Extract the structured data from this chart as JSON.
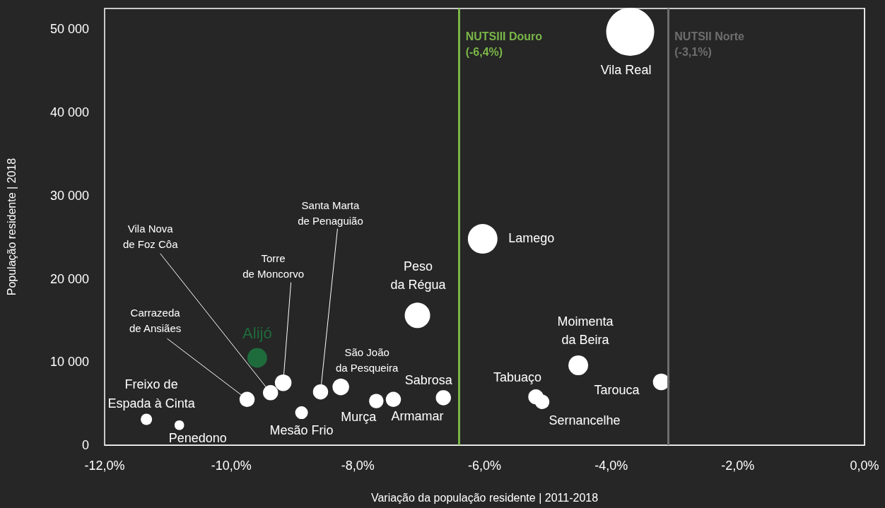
{
  "chart_data": {
    "type": "bubble",
    "xlabel": "Variação da população residente | 2011-2018",
    "ylabel": "População residente | 2018",
    "x": [
      -11.34,
      -10.82,
      -9.75,
      -9.59,
      -9.38,
      -9.18,
      -8.89,
      -8.59,
      -8.27,
      -7.71,
      -7.44,
      -7.06,
      -6.65,
      -6.03,
      -5.19,
      -5.09,
      -4.52,
      -3.7,
      -3.21
    ],
    "values": [
      3100,
      2400,
      5500,
      10500,
      6300,
      7500,
      3900,
      6400,
      7000,
      5300,
      5500,
      15600,
      5700,
      24800,
      5800,
      5200,
      9600,
      49700,
      7600
    ],
    "sizes": [
      0.055,
      0.04,
      0.1,
      0.17,
      0.1,
      0.12,
      0.07,
      0.1,
      0.12,
      0.09,
      0.1,
      0.28,
      0.1,
      0.38,
      0.1,
      0.09,
      0.17,
      1,
      0.12
    ],
    "colors": [
      "#ffffff",
      "#ffffff",
      "#ffffff",
      "#1e6b3c",
      "#ffffff",
      "#ffffff",
      "#ffffff",
      "#ffffff",
      "#ffffff",
      "#ffffff",
      "#ffffff",
      "#ffffff",
      "#ffffff",
      "#ffffff",
      "#ffffff",
      "#ffffff",
      "#ffffff",
      "#ffffff",
      "#ffffff"
    ],
    "annotations": [
      {
        "text": "Freixo de\nEspada à Cinta",
        "x": -11.34,
        "y": 3100
      },
      {
        "text": "Penedono",
        "x": -10.82,
        "y": 2400
      },
      {
        "text": "Carrazeda\nde Ansiães",
        "x": -9.75,
        "y": 5500
      },
      {
        "text": "Alijó",
        "x": -9.59,
        "y": 10500
      },
      {
        "text": "Vila Nova\nde Foz Côa",
        "x": -9.38,
        "y": 6300
      },
      {
        "text": "Torre\nde Moncorvo",
        "x": -9.18,
        "y": 7500
      },
      {
        "text": "Mesão Frio",
        "x": -8.89,
        "y": 3900
      },
      {
        "text": "Santa Marta\nde Penaguião",
        "x": -8.59,
        "y": 6400
      },
      {
        "text": "São João\nda Pesqueira",
        "x": -8.27,
        "y": 7000
      },
      {
        "text": "Murça",
        "x": -7.71,
        "y": 5300
      },
      {
        "text": "Armamar",
        "x": -7.44,
        "y": 5500
      },
      {
        "text": "Peso\nda Régua",
        "x": -7.06,
        "y": 15600
      },
      {
        "text": "Sabrosa",
        "x": -6.65,
        "y": 5700
      },
      {
        "text": "Lamego",
        "x": -6.03,
        "y": 24800
      },
      {
        "text": "Tabuaço",
        "x": -5.19,
        "y": 5800
      },
      {
        "text": "Sernancelhe",
        "x": -5.09,
        "y": 5200
      },
      {
        "text": "Moimenta\nda Beira",
        "x": -4.52,
        "y": 9600
      },
      {
        "text": "Vila Real",
        "x": -3.7,
        "y": 49700
      },
      {
        "text": "Tarouca",
        "x": -3.21,
        "y": 7600
      }
    ],
    "ref_lines": [
      {
        "axis": "x",
        "value": -6.4,
        "label": "NUTSIII Douro\n(-6,4%)",
        "color": "#7ab648"
      },
      {
        "axis": "x",
        "value": -3.1,
        "label": "NUTSII Norte\n(-3,1%)",
        "color": "#6e6e6e"
      }
    ],
    "xlim": [
      -12,
      0
    ],
    "xticks": [
      {
        "value": -12,
        "label": "-12,0%"
      },
      {
        "value": -10,
        "label": "-10,0%"
      },
      {
        "value": -8,
        "label": "-8,0%"
      },
      {
        "value": -6,
        "label": "-6,0%"
      },
      {
        "value": -4,
        "label": "-4,0%"
      },
      {
        "value": -2,
        "label": "-2,0%"
      },
      {
        "value": 0,
        "label": "0,0%"
      }
    ],
    "ylim": [
      0,
      52500
    ],
    "yticks": [
      0,
      {
        "value": 10000,
        "label": "10 000"
      },
      {
        "value": 20000,
        "label": "20 000"
      },
      {
        "value": 30000,
        "label": "30 000"
      },
      {
        "value": 40000,
        "label": "40 000"
      },
      {
        "value": 50000,
        "label": "50 000"
      }
    ]
  }
}
